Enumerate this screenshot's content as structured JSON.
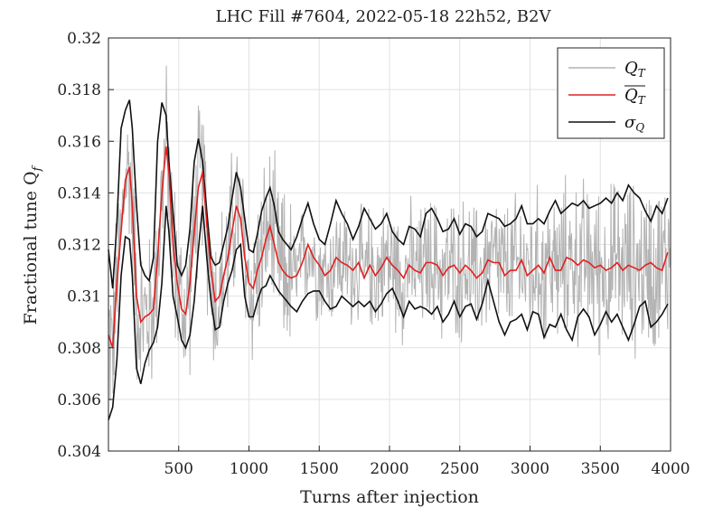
{
  "chart_data": {
    "type": "line",
    "title": "LHC Fill #7604, 2022-05-18 22h52, B2V",
    "xlabel": "Turns after injection",
    "ylabel": "Fractional tune Q_f",
    "xlim": [
      0,
      4000
    ],
    "ylim": [
      0.304,
      0.32
    ],
    "xticks": [
      500,
      1000,
      1500,
      2000,
      2500,
      3000,
      3500,
      4000
    ],
    "yticks": [
      0.304,
      0.306,
      0.308,
      0.31,
      0.312,
      0.314,
      0.316,
      0.318,
      0.32
    ],
    "ytick_labels": [
      "0.304",
      "0.306",
      "0.308",
      "0.31",
      "0.312",
      "0.314",
      "0.316",
      "0.318",
      "0.32"
    ],
    "grid": true,
    "legend_position": "top-right",
    "legend": [
      "Q_T",
      "mean Q_T",
      "σ_Q"
    ],
    "series": [
      {
        "name": "Q_T",
        "color": "#b3b3b3",
        "style": "noisy raw tune signal oscillating around mean",
        "x": [
          0,
          20,
          40,
          60,
          80,
          100,
          120,
          140,
          160,
          180,
          200,
          240,
          280,
          320,
          360,
          400,
          420,
          440,
          480,
          520,
          560,
          600,
          640,
          680,
          720,
          760,
          800,
          840,
          880,
          920,
          960,
          1000,
          1050,
          1100,
          1150,
          1200,
          1250,
          1300,
          1400,
          1500,
          1600,
          1700,
          1800,
          1900,
          2000,
          2100,
          2200,
          2300,
          2400,
          2500,
          2600,
          2700,
          2800,
          2900,
          3000,
          3100,
          3200,
          3300,
          3400,
          3500,
          3600,
          3700,
          3800,
          3900,
          4000
        ],
        "values": [
          0.305,
          0.3075,
          0.31,
          0.3125,
          0.3155,
          0.3185,
          0.3195,
          0.316,
          0.3135,
          0.31,
          0.308,
          0.3085,
          0.309,
          0.3115,
          0.3155,
          0.3185,
          0.3165,
          0.313,
          0.3085,
          0.3095,
          0.311,
          0.3125,
          0.3155,
          0.3155,
          0.3125,
          0.309,
          0.3095,
          0.3115,
          0.314,
          0.3145,
          0.312,
          0.3095,
          0.31,
          0.3125,
          0.313,
          0.3115,
          0.3105,
          0.309,
          0.3125,
          0.311,
          0.3095,
          0.3135,
          0.309,
          0.314,
          0.3085,
          0.3135,
          0.308,
          0.3145,
          0.308,
          0.3145,
          0.3065,
          0.315,
          0.3075,
          0.315,
          0.307,
          0.3155,
          0.307,
          0.3155,
          0.3065,
          0.3145,
          0.3055,
          0.316,
          0.306,
          0.315,
          0.3075
        ]
      },
      {
        "name": "mean Q_T",
        "color": "#e02020",
        "x": [
          0,
          30,
          60,
          90,
          120,
          150,
          170,
          200,
          230,
          260,
          290,
          320,
          350,
          380,
          410,
          430,
          460,
          490,
          520,
          550,
          580,
          610,
          640,
          670,
          700,
          730,
          760,
          790,
          820,
          850,
          880,
          910,
          940,
          970,
          1000,
          1030,
          1060,
          1090,
          1120,
          1150,
          1180,
          1210,
          1240,
          1270,
          1300,
          1340,
          1380,
          1420,
          1460,
          1500,
          1540,
          1580,
          1620,
          1660,
          1700,
          1740,
          1780,
          1820,
          1860,
          1900,
          1940,
          1980,
          2020,
          2060,
          2100,
          2140,
          2180,
          2220,
          2260,
          2300,
          2340,
          2380,
          2420,
          2460,
          2500,
          2540,
          2580,
          2620,
          2660,
          2700,
          2740,
          2780,
          2820,
          2860,
          2900,
          2940,
          2980,
          3020,
          3060,
          3100,
          3140,
          3180,
          3220,
          3260,
          3300,
          3340,
          3380,
          3420,
          3460,
          3500,
          3540,
          3580,
          3620,
          3660,
          3700,
          3740,
          3780,
          3820,
          3860,
          3900,
          3940,
          3980
        ],
        "values": [
          0.3085,
          0.308,
          0.3105,
          0.3125,
          0.3145,
          0.315,
          0.3135,
          0.31,
          0.309,
          0.3092,
          0.3093,
          0.3095,
          0.3115,
          0.314,
          0.3158,
          0.3148,
          0.312,
          0.3105,
          0.3095,
          0.3093,
          0.3105,
          0.3125,
          0.3142,
          0.3148,
          0.3128,
          0.311,
          0.3098,
          0.31,
          0.3108,
          0.3115,
          0.3125,
          0.3135,
          0.313,
          0.3115,
          0.3105,
          0.3103,
          0.311,
          0.3115,
          0.3122,
          0.3127,
          0.312,
          0.3113,
          0.311,
          0.3108,
          0.3107,
          0.3108,
          0.3113,
          0.312,
          0.3115,
          0.3112,
          0.3108,
          0.311,
          0.3115,
          0.3113,
          0.3112,
          0.311,
          0.3113,
          0.3107,
          0.3112,
          0.3108,
          0.3111,
          0.3115,
          0.3112,
          0.311,
          0.3107,
          0.3112,
          0.311,
          0.3109,
          0.3113,
          0.3113,
          0.3112,
          0.3108,
          0.3111,
          0.3112,
          0.3109,
          0.3112,
          0.311,
          0.3107,
          0.3109,
          0.3114,
          0.3113,
          0.3113,
          0.3108,
          0.311,
          0.311,
          0.3114,
          0.3108,
          0.311,
          0.3112,
          0.3109,
          0.3115,
          0.311,
          0.311,
          0.3115,
          0.3114,
          0.3112,
          0.3114,
          0.3113,
          0.3111,
          0.3112,
          0.311,
          0.3111,
          0.3113,
          0.311,
          0.3112,
          0.3111,
          0.311,
          0.3112,
          0.3113,
          0.3111,
          0.311,
          0.3117
        ]
      },
      {
        "name": "σ_Q upper",
        "color": "#111111",
        "x": [
          0,
          30,
          60,
          90,
          120,
          150,
          170,
          200,
          230,
          260,
          290,
          320,
          350,
          380,
          410,
          430,
          460,
          490,
          520,
          550,
          580,
          610,
          640,
          670,
          700,
          730,
          760,
          790,
          820,
          850,
          880,
          910,
          940,
          970,
          1000,
          1030,
          1060,
          1090,
          1120,
          1150,
          1180,
          1210,
          1240,
          1270,
          1300,
          1340,
          1380,
          1420,
          1460,
          1500,
          1540,
          1580,
          1620,
          1660,
          1700,
          1740,
          1780,
          1820,
          1860,
          1900,
          1940,
          1980,
          2020,
          2060,
          2100,
          2140,
          2180,
          2220,
          2260,
          2300,
          2340,
          2380,
          2420,
          2460,
          2500,
          2540,
          2580,
          2620,
          2660,
          2700,
          2740,
          2780,
          2820,
          2860,
          2900,
          2940,
          2980,
          3020,
          3060,
          3100,
          3140,
          3180,
          3220,
          3260,
          3300,
          3340,
          3380,
          3420,
          3460,
          3500,
          3540,
          3580,
          3620,
          3660,
          3700,
          3740,
          3780,
          3820,
          3860,
          3900,
          3940,
          3980
        ],
        "values": [
          0.3118,
          0.3103,
          0.3128,
          0.3165,
          0.3172,
          0.3176,
          0.3165,
          0.3135,
          0.3112,
          0.3108,
          0.3106,
          0.3115,
          0.316,
          0.3175,
          0.317,
          0.3152,
          0.3132,
          0.3112,
          0.3108,
          0.3112,
          0.3126,
          0.3152,
          0.3161,
          0.3152,
          0.3133,
          0.3115,
          0.3112,
          0.3113,
          0.312,
          0.3127,
          0.3138,
          0.3148,
          0.3142,
          0.313,
          0.3118,
          0.3117,
          0.3124,
          0.3133,
          0.3138,
          0.3142,
          0.3135,
          0.3125,
          0.3122,
          0.312,
          0.3118,
          0.3123,
          0.313,
          0.3136,
          0.3128,
          0.3122,
          0.312,
          0.3128,
          0.3137,
          0.3132,
          0.3128,
          0.3122,
          0.3127,
          0.3134,
          0.313,
          0.3126,
          0.3128,
          0.3132,
          0.3125,
          0.3122,
          0.312,
          0.3127,
          0.3126,
          0.3123,
          0.3132,
          0.3134,
          0.313,
          0.3125,
          0.3126,
          0.313,
          0.3124,
          0.3128,
          0.3127,
          0.3123,
          0.3125,
          0.3132,
          0.3131,
          0.313,
          0.3127,
          0.3128,
          0.313,
          0.3135,
          0.3128,
          0.3128,
          0.313,
          0.3128,
          0.3133,
          0.3137,
          0.3132,
          0.3134,
          0.3136,
          0.3135,
          0.3137,
          0.3134,
          0.3135,
          0.3136,
          0.3138,
          0.3136,
          0.314,
          0.3137,
          0.3143,
          0.314,
          0.3138,
          0.3133,
          0.3129,
          0.3135,
          0.3132,
          0.3138
        ]
      },
      {
        "name": "σ_Q lower",
        "color": "#111111",
        "x": [
          0,
          30,
          60,
          90,
          120,
          150,
          170,
          200,
          230,
          260,
          290,
          320,
          350,
          380,
          410,
          430,
          460,
          490,
          520,
          550,
          580,
          610,
          640,
          670,
          700,
          730,
          760,
          790,
          820,
          850,
          880,
          910,
          940,
          970,
          1000,
          1030,
          1060,
          1090,
          1120,
          1150,
          1180,
          1210,
          1240,
          1270,
          1300,
          1340,
          1380,
          1420,
          1460,
          1500,
          1540,
          1580,
          1620,
          1660,
          1700,
          1740,
          1780,
          1820,
          1860,
          1900,
          1940,
          1980,
          2020,
          2060,
          2100,
          2140,
          2180,
          2220,
          2260,
          2300,
          2340,
          2380,
          2420,
          2460,
          2500,
          2540,
          2580,
          2620,
          2660,
          2700,
          2740,
          2780,
          2820,
          2860,
          2900,
          2940,
          2980,
          3020,
          3060,
          3100,
          3140,
          3180,
          3220,
          3260,
          3300,
          3340,
          3380,
          3420,
          3460,
          3500,
          3540,
          3580,
          3620,
          3660,
          3700,
          3740,
          3780,
          3820,
          3860,
          3900,
          3940,
          3980
        ],
        "values": [
          0.3052,
          0.3057,
          0.3075,
          0.3108,
          0.3123,
          0.3122,
          0.3108,
          0.3072,
          0.3066,
          0.3074,
          0.3079,
          0.3082,
          0.3088,
          0.3105,
          0.3135,
          0.3125,
          0.31,
          0.3092,
          0.3083,
          0.308,
          0.3085,
          0.3098,
          0.3118,
          0.3135,
          0.3115,
          0.3098,
          0.3087,
          0.3088,
          0.3098,
          0.3105,
          0.311,
          0.3118,
          0.312,
          0.31,
          0.3092,
          0.3092,
          0.3098,
          0.3103,
          0.3104,
          0.3108,
          0.3105,
          0.3102,
          0.31,
          0.3098,
          0.3096,
          0.3094,
          0.3098,
          0.3101,
          0.3102,
          0.3102,
          0.3098,
          0.3095,
          0.3096,
          0.31,
          0.3098,
          0.3096,
          0.3098,
          0.3096,
          0.3098,
          0.3094,
          0.3097,
          0.3101,
          0.3103,
          0.3098,
          0.3092,
          0.3098,
          0.3095,
          0.3096,
          0.3095,
          0.3093,
          0.3096,
          0.309,
          0.3093,
          0.3098,
          0.3092,
          0.3096,
          0.3097,
          0.3091,
          0.3097,
          0.3106,
          0.3098,
          0.309,
          0.3085,
          0.309,
          0.3091,
          0.3093,
          0.3087,
          0.3094,
          0.3093,
          0.3084,
          0.3089,
          0.3088,
          0.3093,
          0.3087,
          0.3083,
          0.3092,
          0.3095,
          0.3092,
          0.3085,
          0.3089,
          0.3094,
          0.309,
          0.3093,
          0.3088,
          0.3083,
          0.3089,
          0.3096,
          0.3098,
          0.3088,
          0.309,
          0.3093,
          0.3097
        ]
      }
    ]
  }
}
